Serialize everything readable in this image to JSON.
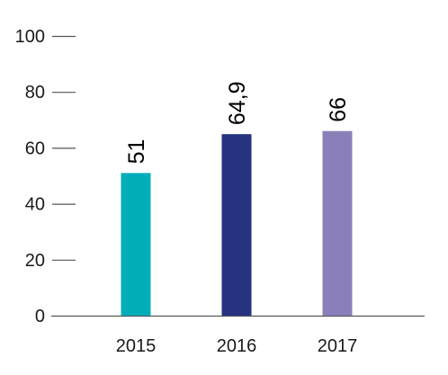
{
  "chart_data": {
    "type": "bar",
    "categories": [
      "2015",
      "2016",
      "2017"
    ],
    "values": [
      51,
      64.9,
      66
    ],
    "data_labels": [
      "51",
      "64,9",
      "66"
    ],
    "bar_colors": [
      "#00adb9",
      "#253380",
      "#8a7fb8"
    ],
    "ylim": [
      0,
      100
    ],
    "yticks": [
      0,
      20,
      40,
      60,
      80,
      100
    ],
    "ytick_labels": [
      "0",
      "20",
      "40",
      "60",
      "80",
      "100"
    ],
    "title": "",
    "xlabel": "",
    "ylabel": "",
    "grid": false,
    "legend": "none"
  }
}
